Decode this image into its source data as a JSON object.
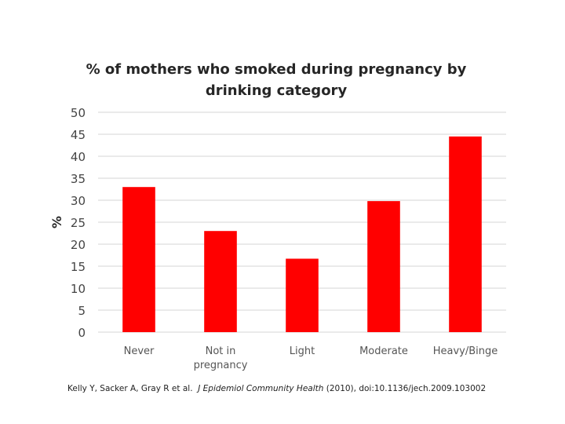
{
  "chart_data": {
    "type": "bar",
    "title_lines": [
      "% of mothers who smoked during pregnancy by",
      "drinking category"
    ],
    "ylabel": "%",
    "xlabel": "",
    "ylim": [
      0,
      50
    ],
    "yticks": [
      0,
      5,
      10,
      15,
      20,
      25,
      30,
      35,
      40,
      45,
      50
    ],
    "categories": [
      {
        "label_lines": [
          "Never"
        ],
        "value": 33
      },
      {
        "label_lines": [
          "Not in",
          "pregnancy"
        ],
        "value": 23
      },
      {
        "label_lines": [
          "Light"
        ],
        "value": 16.7
      },
      {
        "label_lines": [
          "Moderate"
        ],
        "value": 29.8
      },
      {
        "label_lines": [
          "Heavy/Binge"
        ],
        "value": 44.5
      }
    ],
    "bar_color": "#ff0000",
    "grid": true,
    "legend": "none"
  },
  "citation": {
    "authors": "Kelly Y, Sacker A, Gray R et al.",
    "journal": "J Epidemiol Community Health",
    "rest": " (2010), doi:10.1136/jech.2009.103002"
  }
}
